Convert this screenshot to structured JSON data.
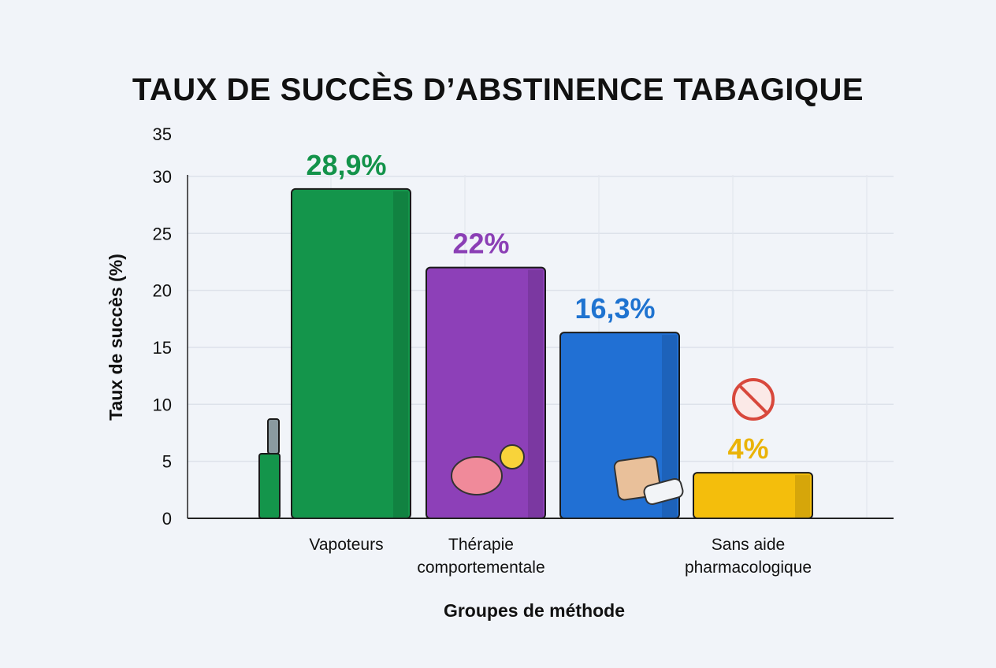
{
  "chart_data": {
    "type": "bar",
    "title": "TAUX DE SUCCÈS D’ABSTINENCE TABAGIQUE",
    "xlabel": "Groupes de méthode",
    "ylabel": "Taux de succès (%)",
    "ylim": [
      0,
      35
    ],
    "yticks": [
      0,
      5,
      10,
      15,
      20,
      25,
      30,
      35
    ],
    "grid": true,
    "categories": [
      [
        "Vapoteurs"
      ],
      [
        "Thérapie",
        "comportementale"
      ],
      [],
      [
        "Sans aide",
        "pharmacologique"
      ]
    ],
    "values": [
      28.9,
      22,
      16.3,
      4
    ],
    "data_labels": [
      "28,9%",
      "22%",
      "16,3%",
      "4%"
    ],
    "colors": [
      "#14954b",
      "#8d40b8",
      "#2170d4",
      "#f4be0c"
    ],
    "label_colors": [
      "#13934a",
      "#8b3fb5",
      "#1f73d0",
      "#eab308"
    ],
    "icons": [
      "vape-device-icon",
      "brain-lightbulb-icon",
      "nicotine-patch-gum-icon",
      "no-hand-icon"
    ]
  }
}
